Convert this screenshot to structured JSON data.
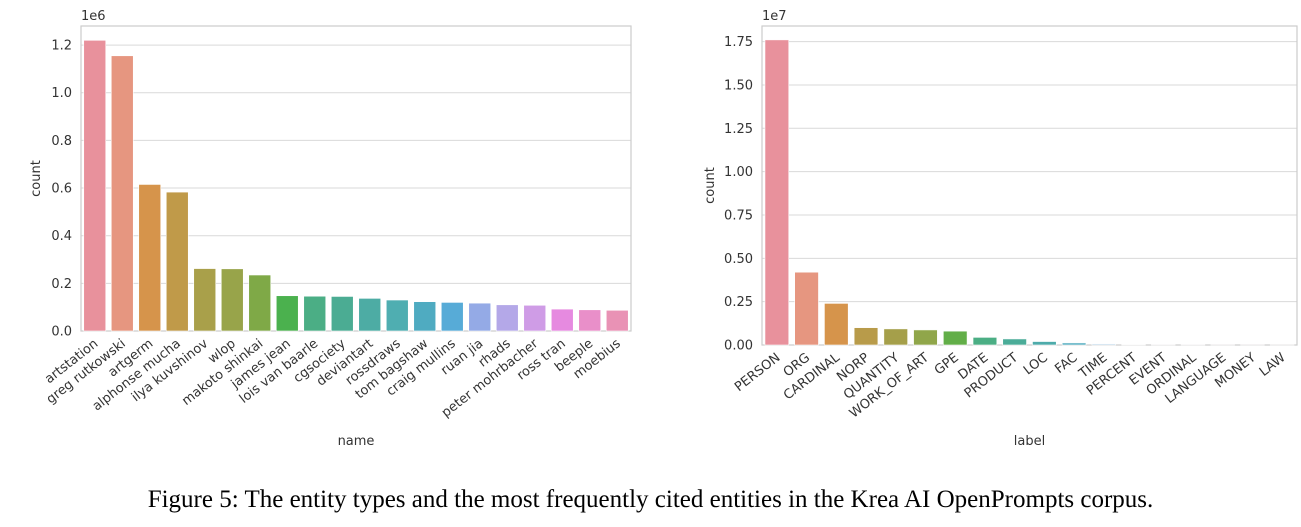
{
  "caption": "Figure 5: The entity types and the most frequently cited entities in the Krea AI OpenPrompts corpus.",
  "chart_data": [
    {
      "type": "bar",
      "title": "",
      "xlabel": "name",
      "ylabel": "count",
      "offset_label": "1e6",
      "ylim": [
        0,
        1.28
      ],
      "yticks": [
        "0.0",
        "0.2",
        "0.4",
        "0.6",
        "0.8",
        "1.0",
        "1.2"
      ],
      "ytick_values": [
        0,
        0.2,
        0.4,
        0.6,
        0.8,
        1.0,
        1.2
      ],
      "grid": true,
      "categories": [
        "artstation",
        "greg rutkowski",
        "artgerm",
        "alphonse mucha",
        "ilya kuvshinov",
        "wlop",
        "makoto shinkai",
        "james jean",
        "lois van baarle",
        "cgsociety",
        "deviantart",
        "rossdraws",
        "tom bagshaw",
        "craig mullins",
        "ruan jia",
        "rhads",
        "peter mohrbacher",
        "ross tran",
        "beeple",
        "moebius"
      ],
      "values": [
        1.22,
        1.155,
        0.615,
        0.583,
        0.262,
        0.261,
        0.235,
        0.148,
        0.146,
        0.145,
        0.137,
        0.13,
        0.123,
        0.12,
        0.117,
        0.11,
        0.108,
        0.092,
        0.089,
        0.087
      ],
      "colors": [
        "#e8919c",
        "#e69680",
        "#d6944b",
        "#c09a49",
        "#a9a04a",
        "#98a44a",
        "#7fa947",
        "#4bb14e",
        "#4bae85",
        "#4bac93",
        "#4daca4",
        "#4faeb1",
        "#4fabc1",
        "#57abd7",
        "#94aae6",
        "#b4a8e8",
        "#cf9ce6",
        "#e68ae0",
        "#e98fc9",
        "#e992b5"
      ]
    },
    {
      "type": "bar",
      "title": "",
      "xlabel": "label",
      "ylabel": "count",
      "offset_label": "1e7",
      "ylim": [
        0,
        1.84
      ],
      "yticks": [
        "0.00",
        "0.25",
        "0.50",
        "0.75",
        "1.00",
        "1.25",
        "1.50",
        "1.75"
      ],
      "ytick_values": [
        0,
        0.25,
        0.5,
        0.75,
        1.0,
        1.25,
        1.5,
        1.75
      ],
      "grid": true,
      "categories": [
        "PERSON",
        "ORG",
        "CARDINAL",
        "NORP",
        "QUANTITY",
        "WORK_OF_ART",
        "GPE",
        "DATE",
        "PRODUCT",
        "LOC",
        "FAC",
        "TIME",
        "PERCENT",
        "EVENT",
        "ORDINAL",
        "LANGUAGE",
        "MONEY",
        "LAW"
      ],
      "values": [
        1.76,
        0.42,
        0.24,
        0.1,
        0.093,
        0.087,
        0.08,
        0.044,
        0.035,
        0.02,
        0.012,
        0.006,
        0.002,
        0.001,
        0.001,
        0.0005,
        0.0004,
        0.0003
      ],
      "colors": [
        "#e8919c",
        "#e69680",
        "#d6944b",
        "#b89b4a",
        "#a59f4a",
        "#90a64a",
        "#62ae48",
        "#4bae84",
        "#4bac98",
        "#4eabaa",
        "#56adc0",
        "#a8c9e0",
        "#c4b6ea",
        "#d4a8e6",
        "#e39be0",
        "#e996cd",
        "#ea94bb",
        "#e992a8"
      ]
    }
  ]
}
